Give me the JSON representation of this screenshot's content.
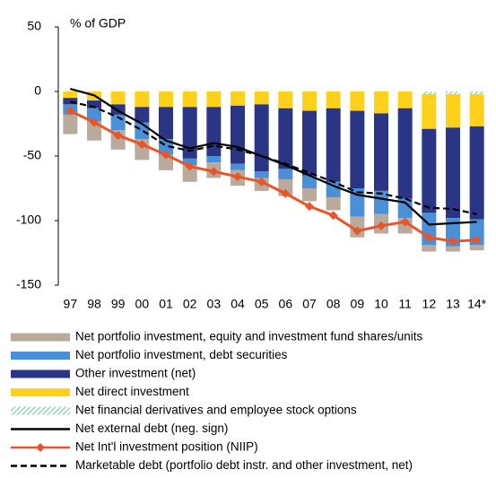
{
  "chart_data": {
    "type": "bar",
    "stacked": true,
    "annotation": "% of GDP",
    "categories": [
      "97",
      "98",
      "99",
      "00",
      "01",
      "02",
      "03",
      "04",
      "05",
      "06",
      "07",
      "08",
      "09",
      "10",
      "11",
      "12",
      "13",
      "14*"
    ],
    "ylim": [
      -150,
      50
    ],
    "yticks": [
      50,
      0,
      -50,
      -100,
      -150
    ],
    "grid": false,
    "series": [
      {
        "name": "Net portfolio investment, equity and investment fund shares/units",
        "type": "bar",
        "color": "#b9aa9c",
        "values": [
          -15,
          -15,
          -15,
          -16,
          -12,
          -13,
          -12,
          -12,
          -10,
          -13,
          -10,
          -10,
          -16,
          -15,
          -12,
          -5,
          -4,
          -4
        ]
      },
      {
        "name": "Net portfolio investment, debt securities",
        "type": "bar",
        "color": "#4a90d9",
        "values": [
          -8,
          -10,
          -12,
          -13,
          -12,
          -5,
          -5,
          -5,
          -5,
          -8,
          -10,
          -12,
          -22,
          -18,
          -15,
          -25,
          -22,
          -20
        ]
      },
      {
        "name": "Other investment (net)",
        "type": "bar",
        "color": "#2b3585",
        "values": [
          -5,
          -6,
          -8,
          -12,
          -25,
          -40,
          -38,
          -45,
          -52,
          -47,
          -50,
          -57,
          -60,
          -60,
          -70,
          -65,
          -70,
          -72
        ]
      },
      {
        "name": "Net direct investment",
        "type": "bar",
        "color": "#ffd11a",
        "values": [
          -5,
          -7,
          -10,
          -12,
          -12,
          -12,
          -12,
          -11,
          -10,
          -13,
          -15,
          -13,
          -15,
          -17,
          -13,
          -27,
          -26,
          -25
        ]
      },
      {
        "name": "Net financial derivatives and employee stock options",
        "type": "bar",
        "color": "#7fcfae",
        "pattern": "hatch",
        "values": [
          0,
          0,
          0,
          0,
          0,
          0,
          0,
          0,
          0,
          0,
          0,
          0,
          0,
          0,
          0,
          -2,
          -2,
          -2
        ]
      },
      {
        "name": "Net external debt (neg. sign)",
        "type": "line",
        "color": "#000000",
        "values": [
          2,
          -3,
          -15,
          -25,
          -38,
          -44,
          -40,
          -43,
          -50,
          -57,
          -65,
          -73,
          -80,
          -83,
          -86,
          -103,
          -102,
          -101
        ]
      },
      {
        "name": "Net Int'l investment position (NIIP)",
        "type": "line",
        "color": "#e8552a",
        "marker": "diamond",
        "values": [
          -15,
          -24,
          -34,
          -41,
          -49,
          -58,
          -62,
          -66,
          -70,
          -79,
          -89,
          -96,
          -108,
          -104,
          -101,
          -113,
          -116,
          -115
        ]
      },
      {
        "name": "Marketable debt (portfolio debt instr. and other investment, net)",
        "type": "line",
        "color": "#000000",
        "dashed": true,
        "values": [
          -8,
          -12,
          -20,
          -30,
          -42,
          -46,
          -42,
          -45,
          -50,
          -56,
          -63,
          -70,
          -78,
          -79,
          -83,
          -90,
          -91,
          -95
        ]
      }
    ]
  }
}
